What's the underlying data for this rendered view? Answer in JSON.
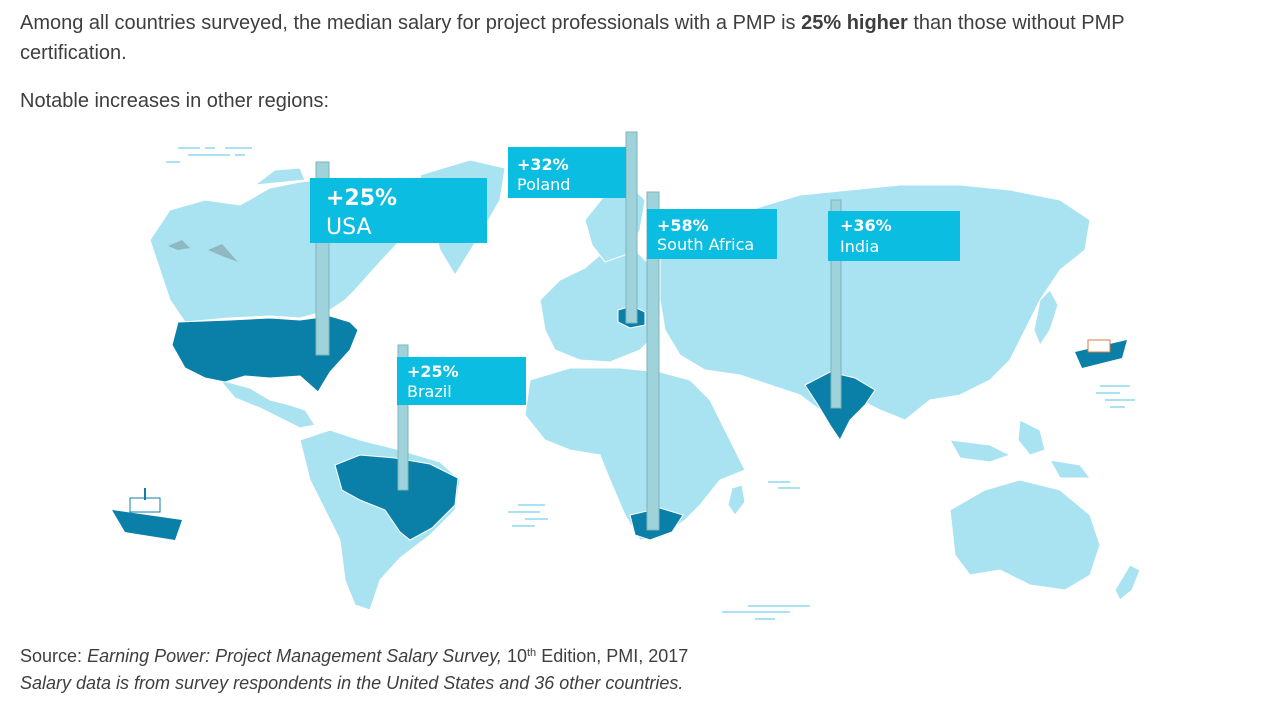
{
  "intro": {
    "before": "Among all countries surveyed, the median salary for project professionals with a PMP is ",
    "highlight": "25% higher",
    "after": " than those without PMP certification."
  },
  "subhead": "Notable increases in other regions:",
  "flags": [
    {
      "pct": "+25%",
      "country": "USA"
    },
    {
      "pct": "+32%",
      "country": "Poland"
    },
    {
      "pct": "+58%",
      "country": "South Africa"
    },
    {
      "pct": "+36%",
      "country": "India"
    },
    {
      "pct": "+25%",
      "country": "Brazil"
    }
  ],
  "colors": {
    "land": "#a9e3f2",
    "highlight": "#0a7fa8",
    "flag": "#0bbde0",
    "pole": "#9fd3dc"
  },
  "source": {
    "label": "Source:",
    "title": "Earning Power: Project Management Salary Survey,",
    "edition_num": "10",
    "edition_sup": "th",
    "edition_rest": "Edition, PMI, 2017"
  },
  "note": "Salary data is from survey respondents in the United States and 36 other countries."
}
